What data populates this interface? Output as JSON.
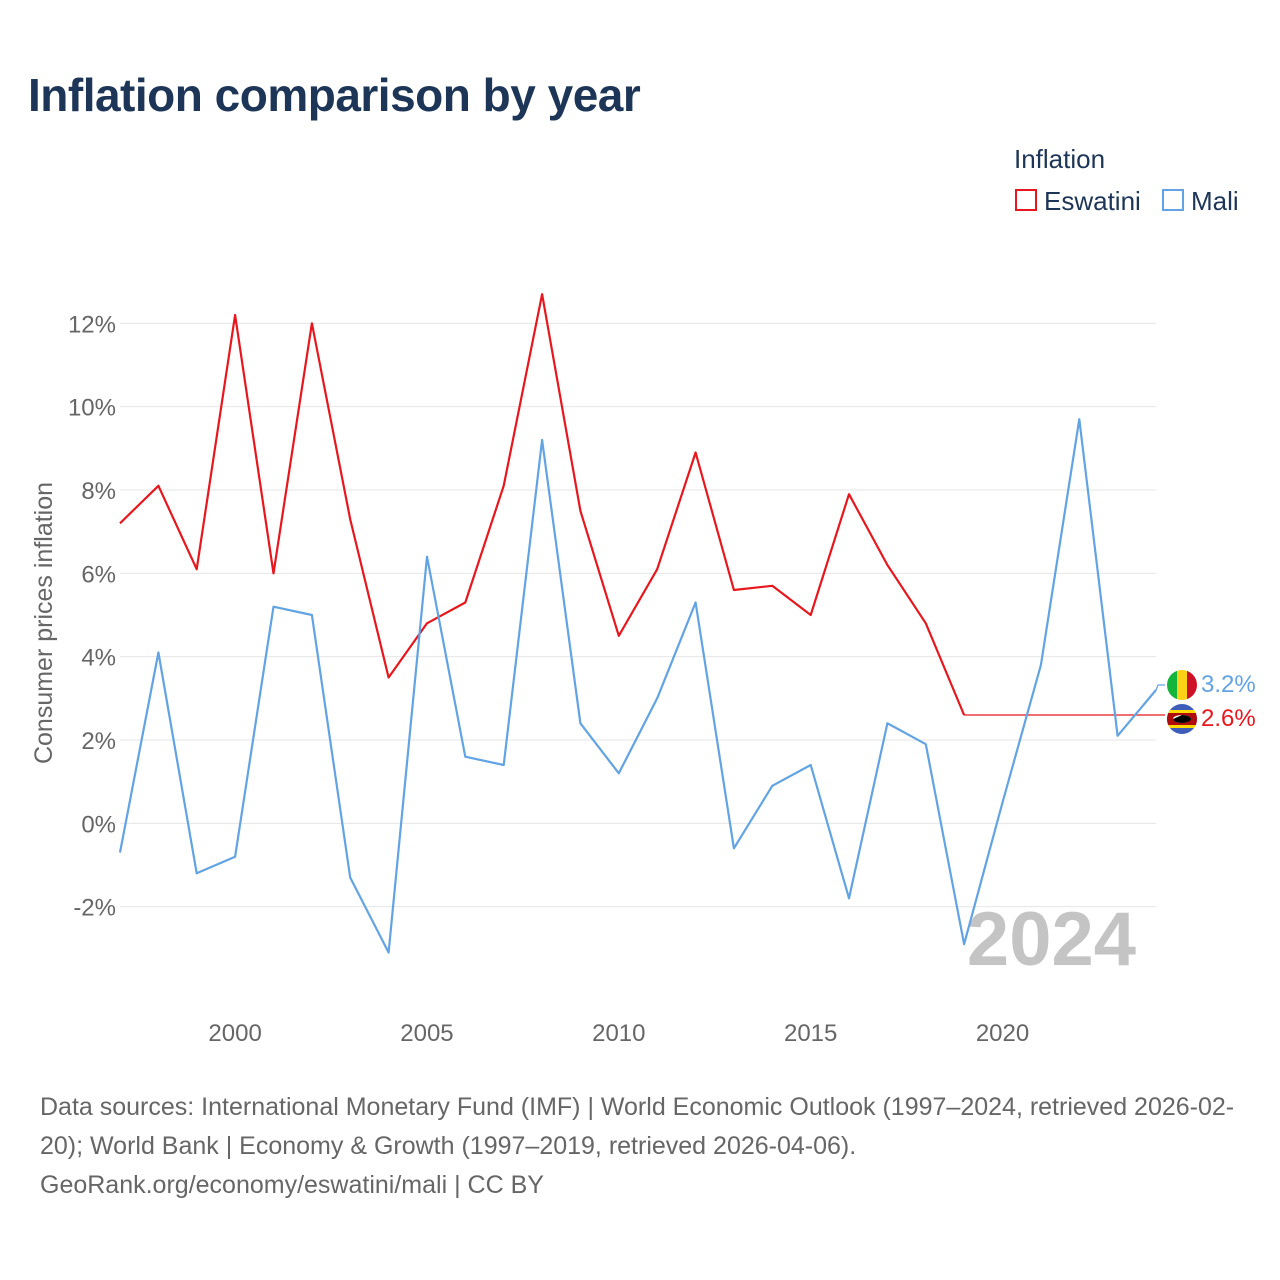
{
  "title": "Inflation comparison by year",
  "legend": {
    "title": "Inflation",
    "items": [
      {
        "name": "Eswatini",
        "color": "#e8171d"
      },
      {
        "name": "Mali",
        "color": "#62a3e3"
      }
    ]
  },
  "big_year": "2024",
  "end_labels": [
    {
      "series": "Mali",
      "text": "3.2%",
      "color": "#62a3e3",
      "flag": "mali-flag-icon"
    },
    {
      "series": "Eswatini",
      "text": "2.6%",
      "color": "#e8171d",
      "flag": "eswatini-flag-icon"
    }
  ],
  "chart_data": {
    "type": "line",
    "title": "Inflation comparison by year",
    "xlabel": "",
    "ylabel": "Consumer prices inflation",
    "xlim": [
      1997,
      2024
    ],
    "ylim": [
      -4,
      14
    ],
    "x_ticks": [
      2000,
      2005,
      2010,
      2015,
      2020
    ],
    "y_ticks": [
      -2,
      0,
      2,
      4,
      6,
      8,
      10,
      12
    ],
    "y_tick_labels": [
      "-2%",
      "0%",
      "2%",
      "4%",
      "6%",
      "8%",
      "10%",
      "12%"
    ],
    "grid": true,
    "legend_position": "top-right",
    "x": [
      1997,
      1998,
      1999,
      2000,
      2001,
      2002,
      2003,
      2004,
      2005,
      2006,
      2007,
      2008,
      2009,
      2010,
      2011,
      2012,
      2013,
      2014,
      2015,
      2016,
      2017,
      2018,
      2019,
      2020,
      2021,
      2022,
      2023,
      2024
    ],
    "series": [
      {
        "name": "Eswatini",
        "color": "#e8171d",
        "values": [
          7.2,
          8.1,
          6.1,
          12.2,
          6.0,
          12.0,
          7.3,
          3.5,
          4.8,
          5.3,
          8.1,
          12.7,
          7.5,
          4.5,
          6.1,
          8.9,
          5.6,
          5.7,
          5.0,
          7.9,
          6.2,
          4.8,
          2.6,
          null,
          null,
          null,
          null,
          null
        ],
        "end_value": 2.6
      },
      {
        "name": "Mali",
        "color": "#62a3e3",
        "values": [
          -0.7,
          4.1,
          -1.2,
          -0.8,
          5.2,
          5.0,
          -1.3,
          -3.1,
          6.4,
          1.6,
          1.4,
          9.2,
          2.4,
          1.2,
          3.0,
          5.3,
          -0.6,
          0.9,
          1.4,
          -1.8,
          2.4,
          1.9,
          -2.9,
          0.5,
          3.8,
          9.7,
          2.1,
          3.2
        ]
      }
    ]
  },
  "sources": {
    "line1": "Data sources: International Monetary Fund (IMF) | World Economic Outlook (1997–2024, retrieved 2026-02-20); World Bank | Economy & Growth (1997–2019, retrieved 2026-04-06).",
    "line2": "GeoRank.org/economy/eswatini/mali | CC BY"
  }
}
